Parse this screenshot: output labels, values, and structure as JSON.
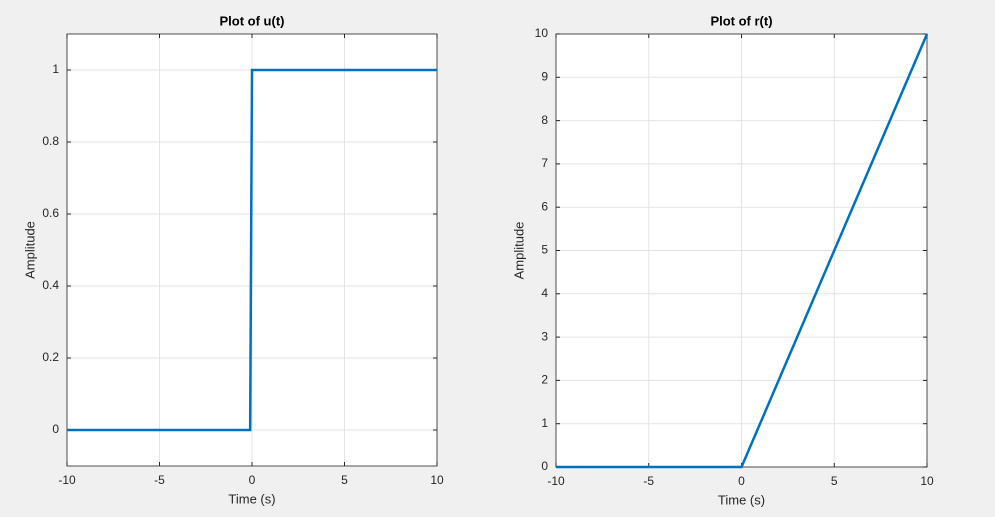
{
  "chart_data": [
    {
      "type": "line",
      "title": "Plot of u(t)",
      "xlabel": "Time (s)",
      "ylabel": "Amplitude",
      "x": [
        -10,
        -0.1,
        0,
        10
      ],
      "values": [
        0,
        0,
        1,
        1
      ],
      "color": "#0072bd",
      "xlim": [
        -10,
        10
      ],
      "ylim": [
        -0.1,
        1.1
      ],
      "xticks": [
        -10,
        -5,
        0,
        5,
        10
      ],
      "yticks": [
        0,
        0.2,
        0.4,
        0.6,
        0.8,
        1
      ],
      "grid": true
    },
    {
      "type": "line",
      "title": "Plot of r(t)",
      "xlabel": "Time (s)",
      "ylabel": "Amplitude",
      "x": [
        -10,
        0,
        10
      ],
      "values": [
        0,
        0,
        10
      ],
      "color": "#0072bd",
      "xlim": [
        -10,
        10
      ],
      "ylim": [
        0,
        10
      ],
      "xticks": [
        -10,
        -5,
        0,
        5,
        10
      ],
      "yticks": [
        0,
        1,
        2,
        3,
        4,
        5,
        6,
        7,
        8,
        9,
        10
      ],
      "grid": true
    }
  ]
}
